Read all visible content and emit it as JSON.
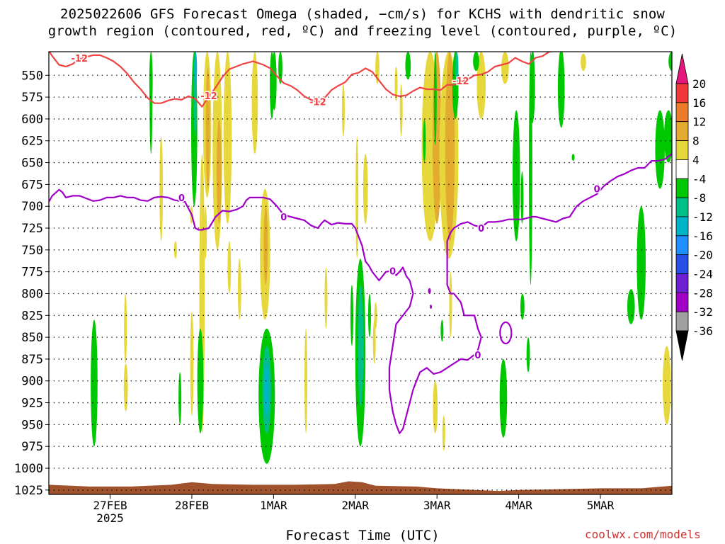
{
  "title": {
    "line1": "2025022606 GFS Forecast Omega (shaded, −cm/s) for KCHS with dendritic snow",
    "line2": "growth region (contoured, red, ºC) and freezing level (contoured, purple, ºC)"
  },
  "xlabel": "Forecast Time (UTC)",
  "credit": "coolwx.com/models",
  "chart_data": {
    "type": "heatmap",
    "y_axis": {
      "quantity": "pressure",
      "unit": "hPa",
      "inverted": true,
      "range": [
        1030,
        523
      ],
      "ticks": [
        550,
        575,
        600,
        625,
        650,
        675,
        700,
        725,
        750,
        775,
        800,
        825,
        850,
        875,
        900,
        925,
        950,
        975,
        1000,
        1025
      ]
    },
    "x_axis": {
      "quantity": "forecast time",
      "start": "2025-02-26T06Z",
      "end": "2025-03-05T21Z",
      "range_hours": [
        0,
        183
      ],
      "ticks": [
        {
          "label": "27FEB",
          "sublabel": "2025",
          "hour": 18
        },
        {
          "label": "28FEB",
          "sublabel": "",
          "hour": 42
        },
        {
          "label": "1MAR",
          "sublabel": "",
          "hour": 66
        },
        {
          "label": "2MAR",
          "sublabel": "",
          "hour": 90
        },
        {
          "label": "3MAR",
          "sublabel": "",
          "hour": 114
        },
        {
          "label": "4MAR",
          "sublabel": "",
          "hour": 138
        },
        {
          "label": "5MAR",
          "sublabel": "",
          "hour": 162
        }
      ]
    },
    "grid": "dotted horizontal lines at pressure ticks",
    "colorbar": {
      "levels": [
        20,
        16,
        12,
        8,
        4,
        -4,
        -8,
        -12,
        -16,
        -20,
        -24,
        -28,
        -32,
        -36
      ],
      "colors": {
        "c16_20": "#f03838",
        "c12_16": "#ec7c2a",
        "c8_12": "#e3ab30",
        "c4_8": "#e6d83c",
        "zero": "#ffffff",
        "m8_m4": "#00c800",
        "m12_m8": "#00c08a",
        "m16_m12": "#00b4c8",
        "m20_m16": "#1e90ff",
        "m24_m20": "#2850e6",
        "m28_m24": "#6e1fd2",
        "m32_m28": "#a000c8",
        "m36_m32": "#a0a0a0",
        "top_arrow": "#e4157c",
        "bottom_arrow": "#000000"
      }
    },
    "contours": [
      {
        "label": "-12",
        "color": "#ee4444",
        "points": [
          [
            0,
            522
          ],
          [
            1,
            528
          ],
          [
            3,
            538
          ],
          [
            5,
            540
          ],
          [
            7,
            537
          ],
          [
            9,
            531
          ],
          [
            11,
            529
          ],
          [
            13,
            527
          ],
          [
            15,
            527
          ],
          [
            17,
            530
          ],
          [
            19,
            534
          ],
          [
            21,
            540
          ],
          [
            23,
            548
          ],
          [
            25,
            558
          ],
          [
            27,
            566
          ],
          [
            29,
            576
          ],
          [
            31,
            582
          ],
          [
            33,
            582
          ],
          [
            35,
            579
          ],
          [
            37,
            577
          ],
          [
            39,
            578
          ],
          [
            41,
            574
          ],
          [
            43,
            577
          ],
          [
            45,
            586
          ],
          [
            47,
            574
          ],
          [
            49,
            564
          ],
          [
            51,
            552
          ],
          [
            53,
            543
          ],
          [
            55,
            540
          ],
          [
            57,
            537
          ],
          [
            60,
            534
          ],
          [
            63,
            538
          ],
          [
            65,
            542
          ],
          [
            67,
            551
          ],
          [
            69,
            559
          ],
          [
            71,
            562
          ],
          [
            73,
            567
          ],
          [
            75,
            574
          ],
          [
            77,
            578
          ],
          [
            79,
            581
          ],
          [
            81,
            576
          ],
          [
            83,
            567
          ],
          [
            85,
            562
          ],
          [
            87,
            558
          ],
          [
            89,
            549
          ],
          [
            91,
            547
          ],
          [
            93,
            542
          ],
          [
            95,
            546
          ],
          [
            97,
            556
          ],
          [
            99,
            566
          ],
          [
            101,
            572
          ],
          [
            103,
            574
          ],
          [
            105,
            573
          ],
          [
            107,
            568
          ],
          [
            109,
            564
          ],
          [
            111,
            566
          ],
          [
            113,
            566
          ],
          [
            115,
            567
          ],
          [
            117,
            561
          ],
          [
            119,
            561
          ],
          [
            121,
            557
          ],
          [
            123,
            555
          ],
          [
            125,
            550
          ],
          [
            127,
            549
          ],
          [
            129,
            546
          ],
          [
            131,
            540
          ],
          [
            133,
            538
          ],
          [
            135,
            536
          ],
          [
            137,
            530
          ],
          [
            139,
            534
          ],
          [
            141,
            537
          ],
          [
            143,
            530
          ],
          [
            145,
            528
          ],
          [
            147,
            523
          ],
          [
            149,
            522
          ]
        ]
      },
      {
        "label": "0",
        "color": "#a000c8",
        "points": [
          [
            0,
            695
          ],
          [
            1,
            688
          ],
          [
            3,
            681
          ],
          [
            4,
            684
          ],
          [
            5,
            690
          ],
          [
            7,
            688
          ],
          [
            9,
            688
          ],
          [
            11,
            691
          ],
          [
            13,
            694
          ],
          [
            15,
            693
          ],
          [
            17,
            690
          ],
          [
            19,
            690
          ],
          [
            21,
            688
          ],
          [
            23,
            690
          ],
          [
            25,
            690
          ],
          [
            27,
            693
          ],
          [
            29,
            694
          ],
          [
            31,
            690
          ],
          [
            33,
            689
          ],
          [
            35,
            690
          ],
          [
            37,
            693
          ],
          [
            40,
            695
          ],
          [
            42,
            710
          ],
          [
            43,
            725
          ],
          [
            44,
            727
          ],
          [
            45,
            727
          ],
          [
            47,
            725
          ],
          [
            49,
            712
          ],
          [
            51,
            705
          ],
          [
            53,
            706
          ],
          [
            55,
            704
          ],
          [
            57,
            700
          ],
          [
            58,
            693
          ],
          [
            59,
            690
          ],
          [
            61,
            690
          ],
          [
            63,
            690
          ],
          [
            65,
            692
          ],
          [
            67,
            700
          ],
          [
            69,
            710
          ],
          [
            71,
            712
          ],
          [
            73,
            714
          ],
          [
            75,
            716
          ],
          [
            77,
            722
          ],
          [
            79,
            725
          ],
          [
            80,
            720
          ],
          [
            81,
            716
          ],
          [
            83,
            721
          ],
          [
            85,
            719
          ],
          [
            87,
            720
          ],
          [
            89,
            720
          ],
          [
            90,
            725
          ],
          [
            91,
            735
          ],
          [
            92,
            745
          ],
          [
            93,
            763
          ],
          [
            94,
            768
          ],
          [
            95,
            775
          ],
          [
            97,
            785
          ],
          [
            98,
            780
          ],
          [
            99,
            775
          ],
          [
            101,
            774
          ],
          [
            102,
            779
          ],
          [
            103,
            775
          ],
          [
            104,
            770
          ],
          [
            105,
            780
          ],
          [
            106,
            785
          ],
          [
            107,
            800
          ],
          [
            106,
            815
          ],
          [
            104,
            825
          ],
          [
            102,
            835
          ],
          [
            101,
            860
          ],
          [
            100,
            885
          ],
          [
            100,
            910
          ],
          [
            101,
            935
          ],
          [
            102,
            950
          ],
          [
            103,
            960
          ],
          [
            104,
            955
          ],
          [
            105,
            940
          ],
          [
            106,
            925
          ],
          [
            107,
            910
          ],
          [
            108,
            900
          ],
          [
            109,
            890
          ],
          [
            111,
            885
          ],
          [
            113,
            892
          ],
          [
            115,
            890
          ],
          [
            117,
            885
          ],
          [
            119,
            880
          ],
          [
            121,
            875
          ],
          [
            123,
            876
          ],
          [
            125,
            870
          ],
          [
            126,
            865
          ],
          [
            127,
            850
          ],
          [
            126,
            840
          ],
          [
            125,
            825
          ],
          [
            124,
            825
          ],
          [
            122,
            825
          ],
          [
            121,
            810
          ],
          [
            119,
            800
          ],
          [
            118,
            800
          ],
          [
            117,
            790
          ],
          [
            117,
            770
          ],
          [
            117,
            755
          ],
          [
            117,
            740
          ],
          [
            118,
            730
          ],
          [
            119,
            725
          ],
          [
            121,
            720
          ],
          [
            123,
            718
          ],
          [
            125,
            722
          ],
          [
            127,
            724
          ],
          [
            129,
            718
          ],
          [
            131,
            718
          ],
          [
            133,
            717
          ],
          [
            135,
            715
          ],
          [
            137,
            715
          ],
          [
            139,
            715
          ],
          [
            141,
            713
          ],
          [
            142,
            712
          ],
          [
            143,
            712
          ],
          [
            145,
            714
          ],
          [
            147,
            716
          ],
          [
            149,
            718
          ],
          [
            151,
            714
          ],
          [
            153,
            712
          ],
          [
            155,
            700
          ],
          [
            157,
            694
          ],
          [
            159,
            690
          ],
          [
            161,
            686
          ],
          [
            163,
            677
          ],
          [
            165,
            671
          ],
          [
            167,
            666
          ],
          [
            169,
            663
          ],
          [
            171,
            659
          ],
          [
            173,
            656
          ],
          [
            175,
            656
          ],
          [
            177,
            648
          ],
          [
            179,
            648
          ],
          [
            181,
            646
          ],
          [
            183,
            640
          ]
        ]
      }
    ]
  }
}
